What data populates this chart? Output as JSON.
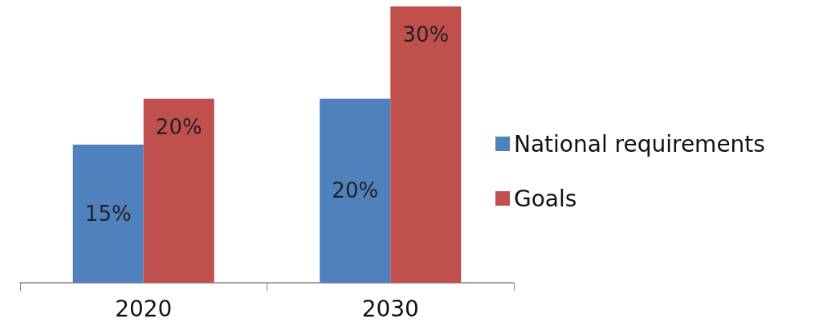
{
  "chart_data": {
    "type": "bar",
    "categories": [
      "2020",
      "2030"
    ],
    "series": [
      {
        "name": "National requirements",
        "color": "#4f81bd",
        "values": [
          15,
          20
        ],
        "value_labels": [
          "15%",
          "20%"
        ]
      },
      {
        "name": "Goals",
        "color": "#c0504d",
        "values": [
          20,
          30
        ],
        "value_labels": [
          "20%",
          "30%"
        ]
      }
    ],
    "legend": "right",
    "grid": false
  }
}
